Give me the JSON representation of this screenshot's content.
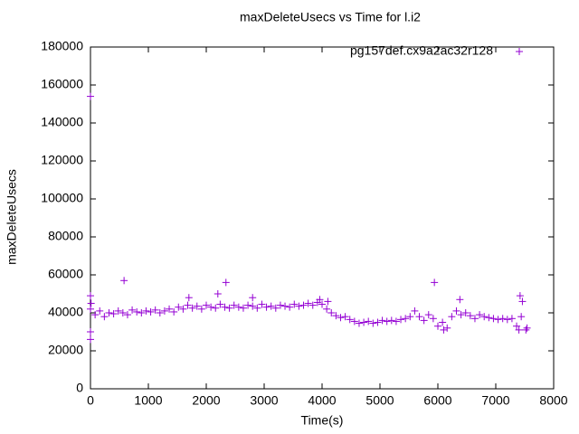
{
  "chart_data": {
    "type": "scatter",
    "title": "maxDeleteUsecs vs Time for l.i2",
    "xlabel": "Time(s)",
    "ylabel": "maxDeleteUsecs",
    "xlim": [
      0,
      8000
    ],
    "xticks": [
      0,
      1000,
      2000,
      3000,
      4000,
      5000,
      6000,
      7000,
      8000
    ],
    "ylim": [
      0,
      180000
    ],
    "yticks": [
      0,
      20000,
      40000,
      60000,
      80000,
      100000,
      120000,
      140000,
      160000,
      180000
    ],
    "legend": "top-right",
    "series": [
      {
        "name": "pg157def.cx9a2ac32r128",
        "color": "#9400d3",
        "x": [
          0,
          80,
          160,
          240,
          320,
          400,
          480,
          560,
          640,
          720,
          800,
          880,
          960,
          1040,
          1120,
          1200,
          1280,
          1360,
          1440,
          1520,
          1600,
          1680,
          1760,
          1840,
          1920,
          2000,
          2080,
          2160,
          2240,
          2320,
          2400,
          2480,
          2560,
          2640,
          2720,
          2800,
          2880,
          2960,
          3040,
          3120,
          3200,
          3280,
          3360,
          3440,
          3520,
          3600,
          3680,
          3760,
          3840,
          3920,
          4000,
          4080,
          4160,
          4240,
          4320,
          4400,
          4480,
          4560,
          4640,
          4720,
          4800,
          4880,
          4960,
          5040,
          5120,
          5200,
          5280,
          5360,
          5440,
          5520,
          5600,
          5680,
          5760,
          5840,
          5920,
          6000,
          6080,
          6160,
          6240,
          6320,
          6400,
          6480,
          6560,
          6640,
          6720,
          6800,
          6880,
          6960,
          7040,
          7120,
          7200,
          7280,
          7360,
          7440,
          7520,
          0,
          0,
          0,
          0,
          10,
          580,
          2340,
          2200,
          1700,
          2800,
          5940,
          6380,
          7420,
          7460,
          4100,
          3960,
          7540,
          7400,
          6100
        ],
        "values": [
          42000,
          39000,
          41000,
          38000,
          40000,
          39500,
          41000,
          40000,
          39000,
          41500,
          40500,
          40000,
          41000,
          40500,
          41500,
          40000,
          41000,
          42000,
          40500,
          43000,
          42000,
          44000,
          42500,
          43500,
          42000,
          44000,
          43000,
          42500,
          44500,
          43000,
          42500,
          44000,
          43000,
          42500,
          44000,
          43500,
          42500,
          44500,
          43000,
          43500,
          42500,
          44000,
          43500,
          43000,
          44500,
          43500,
          44000,
          45000,
          44000,
          45500,
          44500,
          42000,
          40000,
          38500,
          37500,
          38000,
          36500,
          35500,
          34500,
          35000,
          35500,
          34500,
          35000,
          36000,
          35500,
          36000,
          35500,
          36500,
          37000,
          38000,
          41000,
          38000,
          36000,
          39000,
          37000,
          33000,
          35000,
          32000,
          38000,
          41000,
          39000,
          40000,
          38500,
          37000,
          39000,
          38000,
          37500,
          37000,
          36500,
          37000,
          36500,
          37000,
          33000,
          38000,
          31000,
          154000,
          49000,
          26000,
          30000,
          45000,
          57000,
          56000,
          50000,
          48000,
          48000,
          56000,
          47000,
          49000,
          46000,
          46000,
          47000,
          32000,
          31000,
          31000
        ]
      }
    ]
  }
}
